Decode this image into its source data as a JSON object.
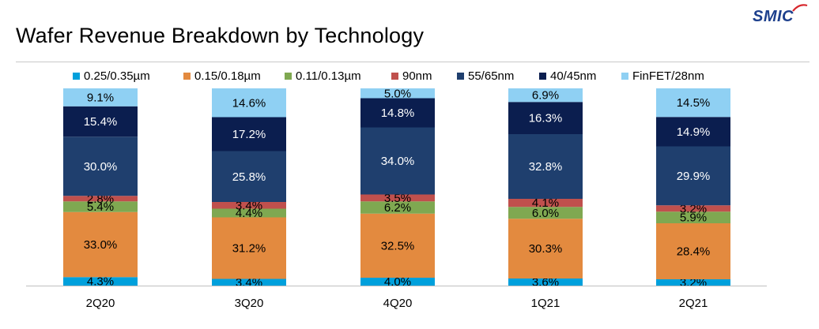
{
  "header": {
    "title": "Wafer Revenue Breakdown by Technology",
    "logo_text": "SMIC"
  },
  "colors": {
    "logo": "#1c3f8c",
    "logo_accent": "#d7262c"
  },
  "chart_data": {
    "type": "bar",
    "stacked": true,
    "title": "Wafer Revenue Breakdown by Technology",
    "xlabel": "",
    "ylabel": "",
    "ylim": [
      0,
      100
    ],
    "unit": "%",
    "legend_position": "top",
    "grid": false,
    "categories": [
      "2Q20",
      "3Q20",
      "4Q20",
      "1Q21",
      "2Q21"
    ],
    "series": [
      {
        "name": "0.25/0.35µm",
        "color": "#00a0dc",
        "label_color": "#000000",
        "values": [
          4.3,
          3.4,
          4.0,
          3.6,
          3.2
        ]
      },
      {
        "name": "0.15/0.18µm",
        "color": "#e38a3f",
        "label_color": "#000000",
        "values": [
          33.0,
          31.2,
          32.5,
          30.3,
          28.4
        ]
      },
      {
        "name": "0.11/0.13µm",
        "color": "#7fa851",
        "label_color": "#000000",
        "values": [
          5.4,
          4.4,
          6.2,
          6.0,
          5.9
        ]
      },
      {
        "name": "90nm",
        "color": "#c0504d",
        "label_color": "#000000",
        "values": [
          2.8,
          3.4,
          3.5,
          4.1,
          3.2
        ]
      },
      {
        "name": "55/65nm",
        "color": "#1f3f6e",
        "label_color": "#ffffff",
        "values": [
          30.0,
          25.8,
          34.0,
          32.8,
          29.9
        ]
      },
      {
        "name": "40/45nm",
        "color": "#0b1e4f",
        "label_color": "#ffffff",
        "values": [
          15.4,
          17.2,
          14.8,
          16.3,
          14.9
        ]
      },
      {
        "name": "FinFET/28nm",
        "color": "#8fd0f3",
        "label_color": "#000000",
        "values": [
          9.1,
          14.6,
          5.0,
          6.9,
          14.5
        ]
      }
    ]
  }
}
